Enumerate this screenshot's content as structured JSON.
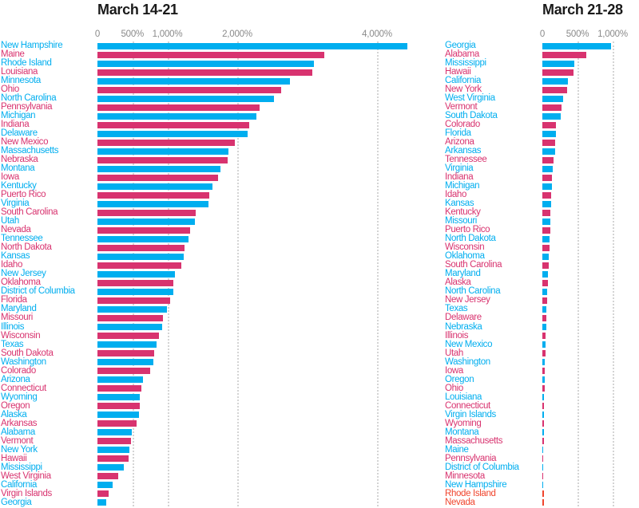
{
  "colors": {
    "blue": "#00aeef",
    "pink": "#d8336f",
    "red": "#f0452d",
    "tick_text": "#8a8a8a",
    "gridline": "#d4d4d4",
    "title_text": "#1a1a1a"
  },
  "chart_data": [
    {
      "type": "bar",
      "orientation": "horizontal",
      "title": "March 14-21",
      "xlabel": "",
      "ylabel": "",
      "xlim": [
        0,
        4600
      ],
      "grid": "vertical-dotted",
      "legend": "none",
      "x_ticks": [
        {
          "label": "0",
          "value": 0
        },
        {
          "label": "500%",
          "value": 500
        },
        {
          "label": "1,000%",
          "value": 1000
        },
        {
          "label": "2,000%",
          "value": 2000
        },
        {
          "label": "4,000%",
          "value": 4000
        }
      ],
      "bars": [
        {
          "label": "New Hampshire",
          "value": 4430,
          "color": "blue"
        },
        {
          "label": "Maine",
          "value": 3250,
          "color": "pink"
        },
        {
          "label": "Rhode Island",
          "value": 3100,
          "color": "blue"
        },
        {
          "label": "Louisiana",
          "value": 3075,
          "color": "pink"
        },
        {
          "label": "Minnesota",
          "value": 2750,
          "color": "blue"
        },
        {
          "label": "Ohio",
          "value": 2630,
          "color": "pink"
        },
        {
          "label": "North Carolina",
          "value": 2530,
          "color": "blue"
        },
        {
          "label": "Pennsylvania",
          "value": 2320,
          "color": "pink"
        },
        {
          "label": "Michigan",
          "value": 2270,
          "color": "blue"
        },
        {
          "label": "Indiana",
          "value": 2175,
          "color": "pink"
        },
        {
          "label": "Delaware",
          "value": 2150,
          "color": "blue"
        },
        {
          "label": "New Mexico",
          "value": 1960,
          "color": "pink"
        },
        {
          "label": "Massachusetts",
          "value": 1870,
          "color": "blue"
        },
        {
          "label": "Nebraska",
          "value": 1860,
          "color": "pink"
        },
        {
          "label": "Montana",
          "value": 1760,
          "color": "blue"
        },
        {
          "label": "Iowa",
          "value": 1720,
          "color": "pink"
        },
        {
          "label": "Kentucky",
          "value": 1640,
          "color": "blue"
        },
        {
          "label": "Puerto Rico",
          "value": 1600,
          "color": "pink"
        },
        {
          "label": "Virginia",
          "value": 1590,
          "color": "blue"
        },
        {
          "label": "South Carolina",
          "value": 1400,
          "color": "pink"
        },
        {
          "label": "Utah",
          "value": 1390,
          "color": "blue"
        },
        {
          "label": "Nevada",
          "value": 1330,
          "color": "pink"
        },
        {
          "label": "Tennessee",
          "value": 1300,
          "color": "blue"
        },
        {
          "label": "North Dakota",
          "value": 1250,
          "color": "pink"
        },
        {
          "label": "Kansas",
          "value": 1230,
          "color": "blue"
        },
        {
          "label": "Idaho",
          "value": 1200,
          "color": "pink"
        },
        {
          "label": "New Jersey",
          "value": 1105,
          "color": "blue"
        },
        {
          "label": "Oklahoma",
          "value": 1085,
          "color": "pink"
        },
        {
          "label": "District of Columbia",
          "value": 1080,
          "color": "blue"
        },
        {
          "label": "Florida",
          "value": 1040,
          "color": "pink"
        },
        {
          "label": "Maryland",
          "value": 990,
          "color": "blue"
        },
        {
          "label": "Missouri",
          "value": 940,
          "color": "pink"
        },
        {
          "label": "Illinois",
          "value": 930,
          "color": "blue"
        },
        {
          "label": "Wisconsin",
          "value": 880,
          "color": "pink"
        },
        {
          "label": "Texas",
          "value": 850,
          "color": "blue"
        },
        {
          "label": "South Dakota",
          "value": 810,
          "color": "pink"
        },
        {
          "label": "Washington",
          "value": 800,
          "color": "blue"
        },
        {
          "label": "Colorado",
          "value": 750,
          "color": "pink"
        },
        {
          "label": "Arizona",
          "value": 650,
          "color": "blue"
        },
        {
          "label": "Connecticut",
          "value": 630,
          "color": "pink"
        },
        {
          "label": "Wyoming",
          "value": 610,
          "color": "blue"
        },
        {
          "label": "Oregon",
          "value": 605,
          "color": "pink"
        },
        {
          "label": "Alaska",
          "value": 598,
          "color": "blue"
        },
        {
          "label": "Arkansas",
          "value": 560,
          "color": "pink"
        },
        {
          "label": "Alabama",
          "value": 490,
          "color": "blue"
        },
        {
          "label": "Vermont",
          "value": 475,
          "color": "pink"
        },
        {
          "label": "New York",
          "value": 455,
          "color": "blue"
        },
        {
          "label": "Hawaii",
          "value": 445,
          "color": "pink"
        },
        {
          "label": "Mississippi",
          "value": 375,
          "color": "blue"
        },
        {
          "label": "West Virginia",
          "value": 300,
          "color": "pink"
        },
        {
          "label": "California",
          "value": 220,
          "color": "blue"
        },
        {
          "label": "Virgin Islands",
          "value": 160,
          "color": "pink"
        },
        {
          "label": "Georgia",
          "value": 120,
          "color": "blue"
        }
      ]
    },
    {
      "type": "bar",
      "orientation": "horizontal",
      "title": "March 21-28",
      "xlabel": "",
      "ylabel": "",
      "xlim": [
        0,
        1375
      ],
      "grid": "vertical-dotted",
      "legend": "none",
      "x_ticks": [
        {
          "label": "0",
          "value": 0
        },
        {
          "label": "500%",
          "value": 500
        },
        {
          "label": "1,000%",
          "value": 1000
        }
      ],
      "bars": [
        {
          "label": "Georgia",
          "value": 980,
          "color": "blue"
        },
        {
          "label": "Alabama",
          "value": 630,
          "color": "pink"
        },
        {
          "label": "Mississippi",
          "value": 460,
          "color": "blue"
        },
        {
          "label": "Hawaii",
          "value": 445,
          "color": "pink"
        },
        {
          "label": "California",
          "value": 365,
          "color": "blue"
        },
        {
          "label": "New York",
          "value": 350,
          "color": "pink"
        },
        {
          "label": "West Virginia",
          "value": 290,
          "color": "blue"
        },
        {
          "label": "Vermont",
          "value": 272,
          "color": "pink"
        },
        {
          "label": "South Dakota",
          "value": 265,
          "color": "blue"
        },
        {
          "label": "Colorado",
          "value": 195,
          "color": "pink"
        },
        {
          "label": "Florida",
          "value": 190,
          "color": "blue"
        },
        {
          "label": "Arizona",
          "value": 185,
          "color": "pink"
        },
        {
          "label": "Arkansas",
          "value": 180,
          "color": "blue"
        },
        {
          "label": "Tennessee",
          "value": 155,
          "color": "pink"
        },
        {
          "label": "Virginia",
          "value": 148,
          "color": "blue"
        },
        {
          "label": "Indiana",
          "value": 140,
          "color": "pink"
        },
        {
          "label": "Michigan",
          "value": 135,
          "color": "blue"
        },
        {
          "label": "Idaho",
          "value": 130,
          "color": "pink"
        },
        {
          "label": "Kansas",
          "value": 122,
          "color": "blue"
        },
        {
          "label": "Kentucky",
          "value": 118,
          "color": "pink"
        },
        {
          "label": "Missouri",
          "value": 112,
          "color": "blue"
        },
        {
          "label": "Puerto Rico",
          "value": 108,
          "color": "pink"
        },
        {
          "label": "North Dakota",
          "value": 102,
          "color": "blue"
        },
        {
          "label": "Wisconsin",
          "value": 98,
          "color": "pink"
        },
        {
          "label": "Oklahoma",
          "value": 92,
          "color": "blue"
        },
        {
          "label": "South Carolina",
          "value": 90,
          "color": "pink"
        },
        {
          "label": "Maryland",
          "value": 85,
          "color": "blue"
        },
        {
          "label": "Alaska",
          "value": 78,
          "color": "pink"
        },
        {
          "label": "North Carolina",
          "value": 72,
          "color": "blue"
        },
        {
          "label": "New Jersey",
          "value": 68,
          "color": "pink"
        },
        {
          "label": "Texas",
          "value": 62,
          "color": "blue"
        },
        {
          "label": "Delaware",
          "value": 58,
          "color": "pink"
        },
        {
          "label": "Nebraska",
          "value": 52,
          "color": "blue"
        },
        {
          "label": "Illinois",
          "value": 48,
          "color": "pink"
        },
        {
          "label": "New Mexico",
          "value": 45,
          "color": "blue"
        },
        {
          "label": "Utah",
          "value": 42,
          "color": "pink"
        },
        {
          "label": "Washington",
          "value": 38,
          "color": "blue"
        },
        {
          "label": "Iowa",
          "value": 35,
          "color": "pink"
        },
        {
          "label": "Oregon",
          "value": 32,
          "color": "blue"
        },
        {
          "label": "Ohio",
          "value": 30,
          "color": "pink"
        },
        {
          "label": "Louisiana",
          "value": 28,
          "color": "blue"
        },
        {
          "label": "Connecticut",
          "value": 26,
          "color": "pink"
        },
        {
          "label": "Virgin Islands",
          "value": 25,
          "color": "blue"
        },
        {
          "label": "Wyoming",
          "value": 24,
          "color": "pink"
        },
        {
          "label": "Montana",
          "value": 22,
          "color": "blue"
        },
        {
          "label": "Massachusetts",
          "value": 20,
          "color": "pink"
        },
        {
          "label": "Maine",
          "value": 16,
          "color": "blue"
        },
        {
          "label": "Pennsylvania",
          "value": 15,
          "color": "pink"
        },
        {
          "label": "District of Columbia",
          "value": 13,
          "color": "blue"
        },
        {
          "label": "Minnesota",
          "value": 12,
          "color": "pink"
        },
        {
          "label": "New Hampshire",
          "value": 10,
          "color": "blue"
        },
        {
          "label": "Rhode Island",
          "value": 20,
          "color": "red"
        },
        {
          "label": "Nevada",
          "value": 25,
          "color": "red"
        }
      ]
    }
  ]
}
